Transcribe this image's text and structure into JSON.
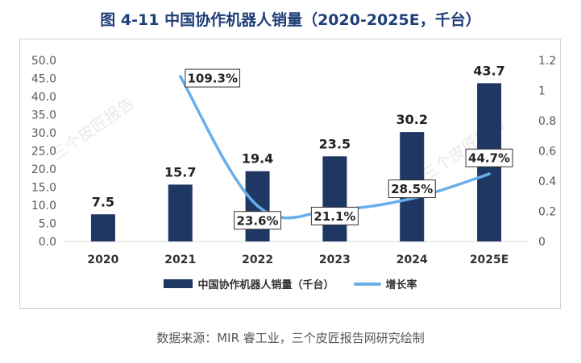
{
  "title": "图 4-11 中国协作机器人销量（2020-2025E，千台）",
  "source": "数据来源：MIR 睿工业，三个皮匠报告网研究绘制",
  "watermark": "三个皮匠报告",
  "colors": {
    "bar": "#1f3763",
    "line": "#6aaeea",
    "title": "#1f3f78",
    "axis": "#595959",
    "grid": "#d9d9d9"
  },
  "chart_data": {
    "type": "bar+line",
    "categories": [
      "2020",
      "2021",
      "2022",
      "2023",
      "2024",
      "2025E"
    ],
    "series": [
      {
        "name": "中国协作机器人销量（千台）",
        "type": "bar",
        "axis": "left",
        "values": [
          7.5,
          15.7,
          19.4,
          23.5,
          30.2,
          43.7
        ],
        "labels": [
          "7.5",
          "15.7",
          "19.4",
          "23.5",
          "30.2",
          "43.7"
        ]
      },
      {
        "name": "增长率",
        "type": "line",
        "axis": "right",
        "values": [
          null,
          1.093,
          0.236,
          0.211,
          0.285,
          0.447
        ],
        "labels": [
          "",
          "109.3%",
          "23.6%",
          "21.1%",
          "28.5%",
          "44.7%"
        ]
      }
    ],
    "y_left": {
      "range": [
        0,
        50
      ],
      "ticks": [
        "0.0",
        "5.0",
        "10.0",
        "15.0",
        "20.0",
        "25.0",
        "30.0",
        "35.0",
        "40.0",
        "45.0",
        "50.0"
      ]
    },
    "y_right": {
      "range": [
        0,
        1.2
      ],
      "ticks": [
        "0",
        "0.2",
        "0.4",
        "0.6",
        "0.8",
        "1",
        "1.2"
      ]
    },
    "legend": [
      "中国协作机器人销量（千台）",
      "增长率"
    ]
  }
}
